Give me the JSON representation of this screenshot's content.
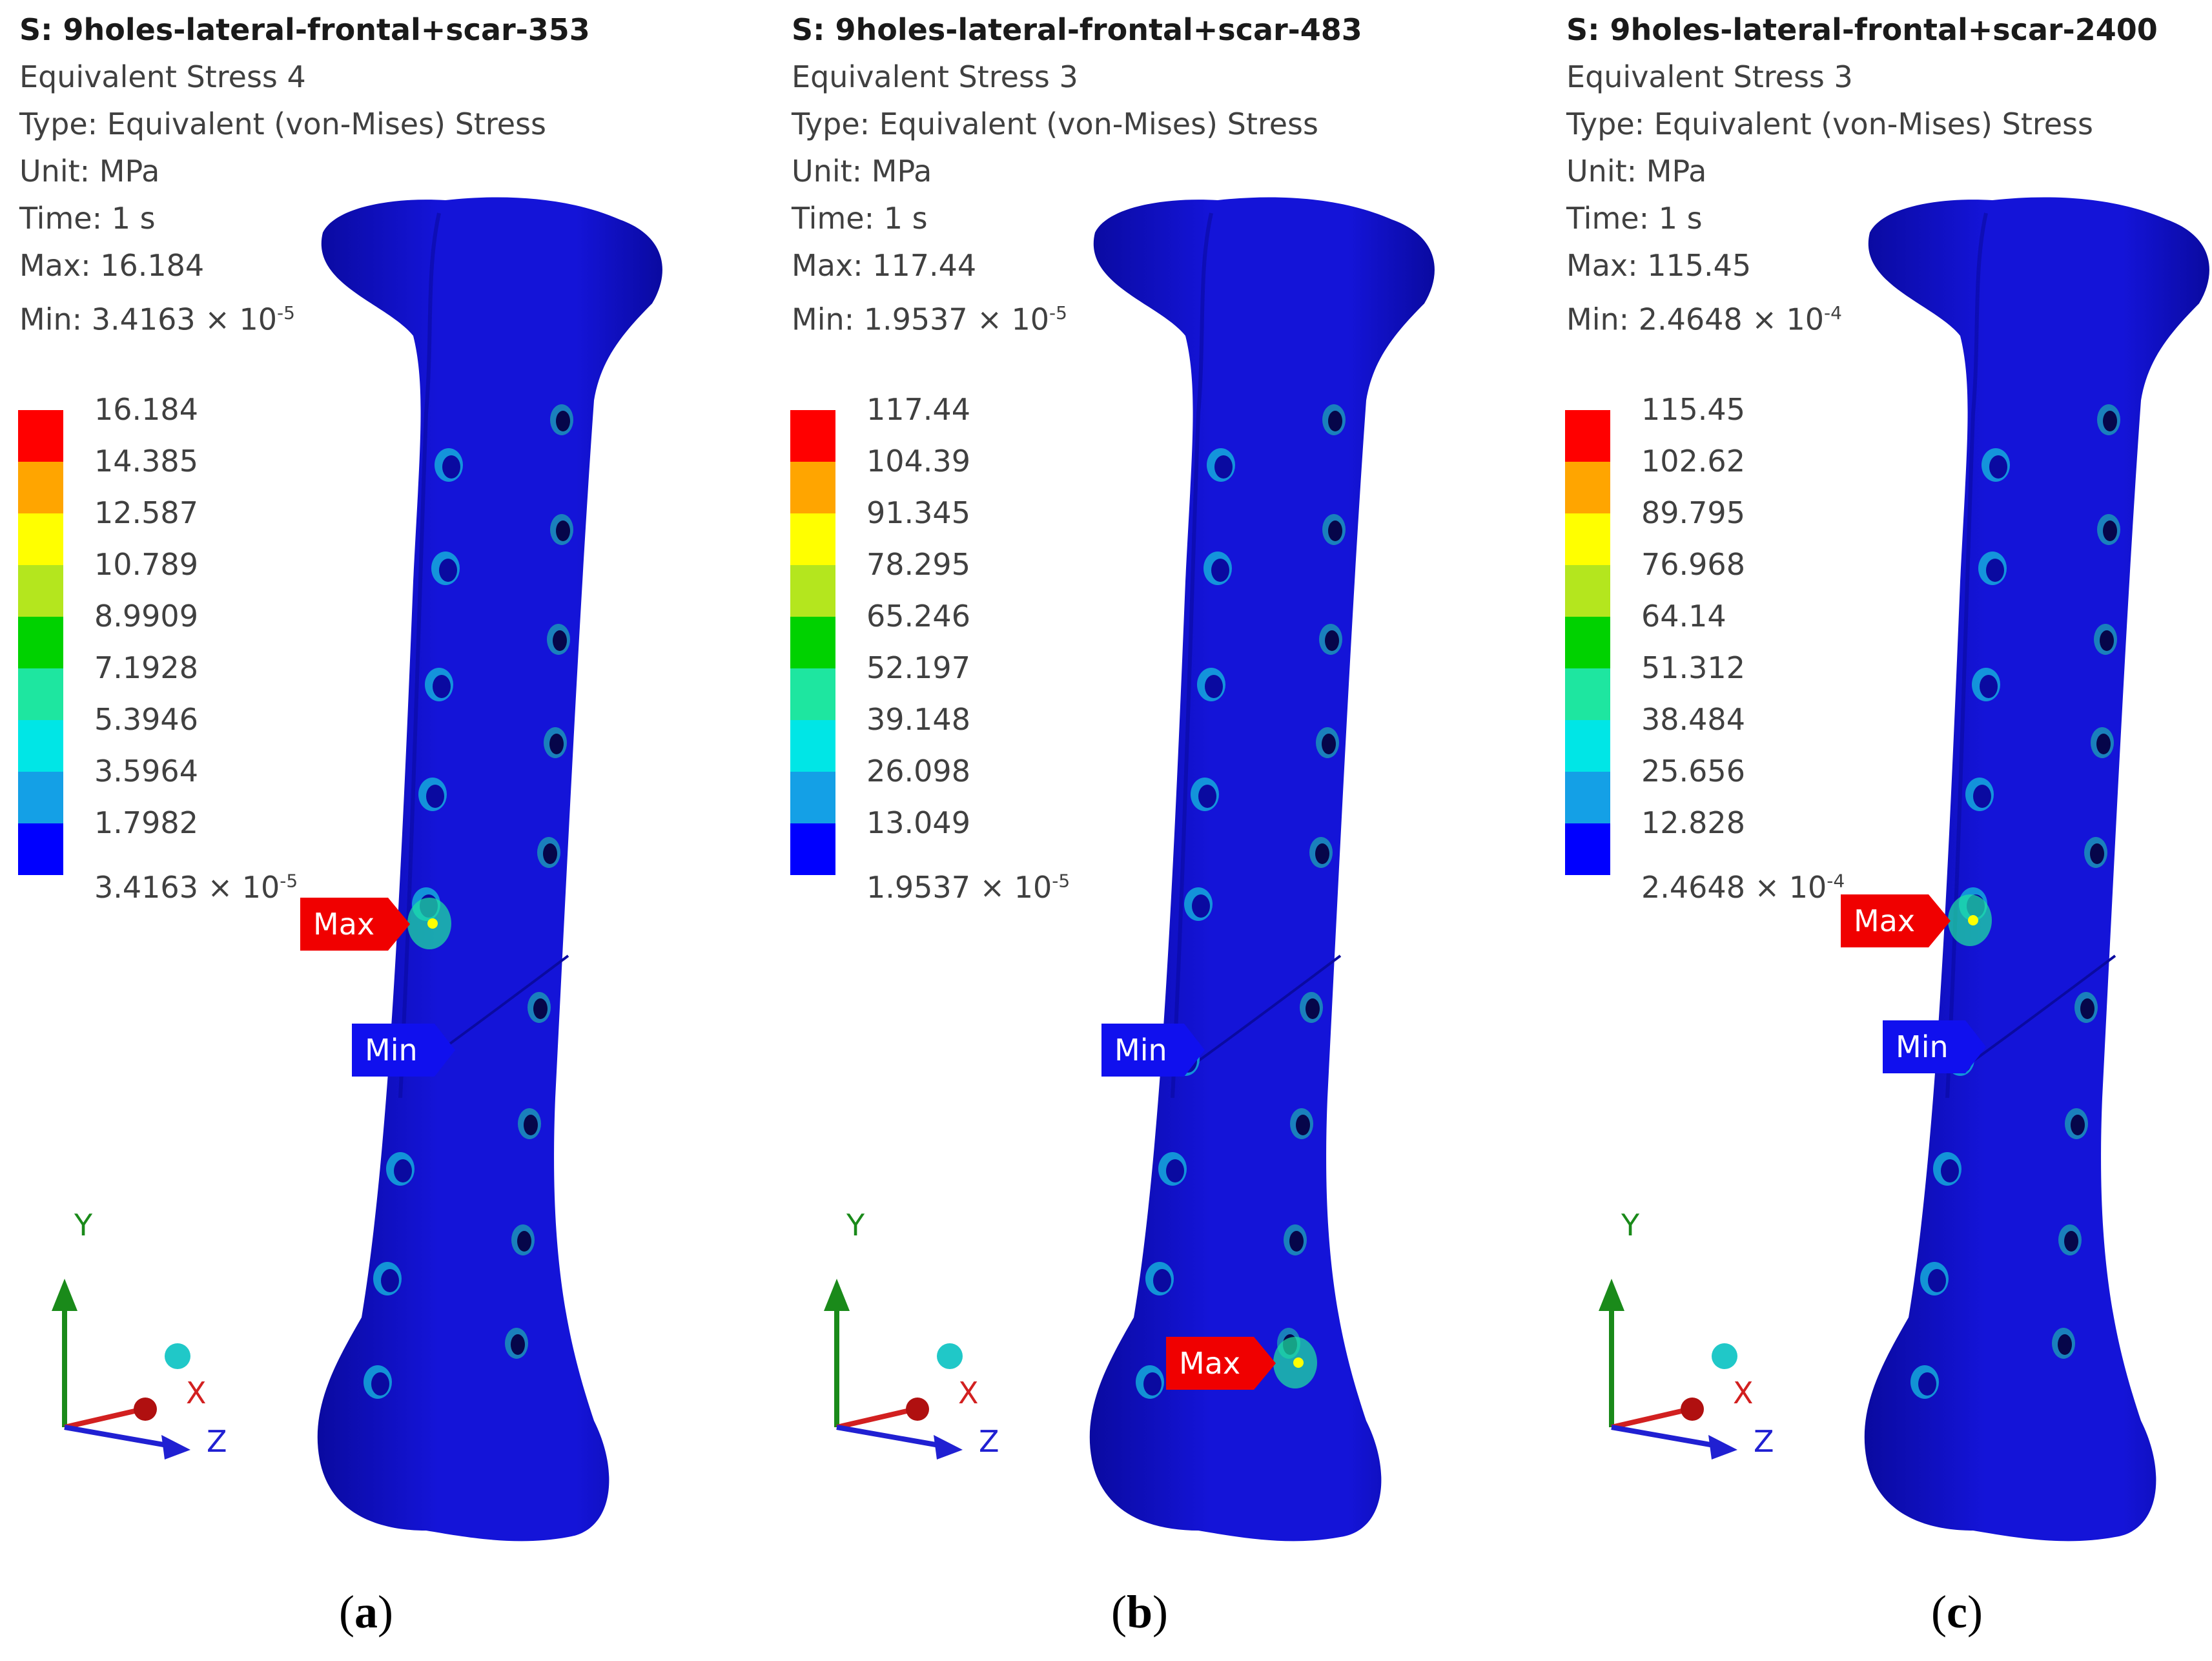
{
  "panels": [
    {
      "id": "a",
      "title": "S: 9holes-lateral-frontal+scar-353",
      "result": "Equivalent Stress 4",
      "type": "Type: Equivalent (von-Mises) Stress",
      "unit": "Unit: MPa",
      "time": "Time: 1 s",
      "max": "Max: 16.184",
      "min_prefix": "Min: 3.4163 × 10",
      "min_exp": "-5",
      "legend": [
        "16.184",
        "14.385",
        "12.587",
        "10.789",
        "8.9909",
        "7.1928",
        "5.3946",
        "3.5964",
        "1.7982"
      ],
      "legend_min_prefix": "3.4163 × 10",
      "legend_min_exp": "-5",
      "max_tag": "Max",
      "min_tag": "Min",
      "caption": "a"
    },
    {
      "id": "b",
      "title": "S: 9holes-lateral-frontal+scar-483",
      "result": "Equivalent Stress 3",
      "type": "Type: Equivalent (von-Mises) Stress",
      "unit": "Unit: MPa",
      "time": "Time: 1 s",
      "max": "Max: 117.44",
      "min_prefix": "Min: 1.9537 × 10",
      "min_exp": "-5",
      "legend": [
        "117.44",
        "104.39",
        "91.345",
        "78.295",
        "65.246",
        "52.197",
        "39.148",
        "26.098",
        "13.049"
      ],
      "legend_min_prefix": "1.9537 × 10",
      "legend_min_exp": "-5",
      "max_tag": "Max",
      "min_tag": "Min",
      "caption": "b"
    },
    {
      "id": "c",
      "title": "S: 9holes-lateral-frontal+scar-2400",
      "result": "Equivalent Stress 3",
      "type": "Type: Equivalent (von-Mises) Stress",
      "unit": "Unit: MPa",
      "time": "Time: 1 s",
      "max": "Max: 115.45",
      "min_prefix": "Min: 2.4648 × 10",
      "min_exp": "-4",
      "legend": [
        "115.45",
        "102.62",
        "89.795",
        "76.968",
        "64.14",
        "51.312",
        "38.484",
        "25.656",
        "12.828"
      ],
      "legend_min_prefix": "2.4648 × 10",
      "legend_min_exp": "-4",
      "max_tag": "Max",
      "min_tag": "Min",
      "caption": "c"
    }
  ],
  "axes": {
    "y": "Y",
    "x": "X",
    "z": "Z"
  },
  "colors": {
    "bone": "#1414d8",
    "bone_dark": "#0a0aa0",
    "legend": [
      "#ff0000",
      "#ffa500",
      "#ffff00",
      "#b4e61e",
      "#00d200",
      "#1ee6a0",
      "#00e6e6",
      "#14a0e6",
      "#0000ff"
    ],
    "max_tag": "#f00000",
    "min_tag": "#1010ee"
  }
}
